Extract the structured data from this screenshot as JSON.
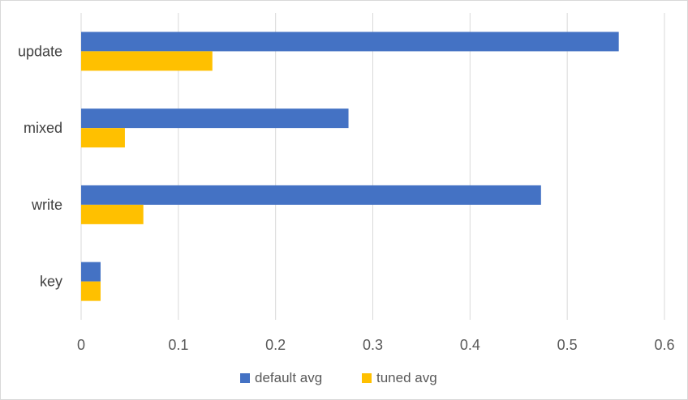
{
  "chart_data": {
    "type": "bar",
    "orientation": "horizontal",
    "categories": [
      "update",
      "mixed",
      "write",
      "key"
    ],
    "series": [
      {
        "name": "default avg",
        "color": "#4472C4",
        "values": [
          0.553,
          0.275,
          0.473,
          0.02
        ]
      },
      {
        "name": "tuned avg",
        "color": "#FFC000",
        "values": [
          0.135,
          0.045,
          0.064,
          0.02
        ]
      }
    ],
    "xlim": [
      0,
      0.6
    ],
    "xticks": [
      "0",
      "0.1",
      "0.2",
      "0.3",
      "0.4",
      "0.5",
      "0.6"
    ],
    "xlabel": "",
    "ylabel": "",
    "title": "",
    "grid": "vertical",
    "legend_position": "bottom"
  }
}
